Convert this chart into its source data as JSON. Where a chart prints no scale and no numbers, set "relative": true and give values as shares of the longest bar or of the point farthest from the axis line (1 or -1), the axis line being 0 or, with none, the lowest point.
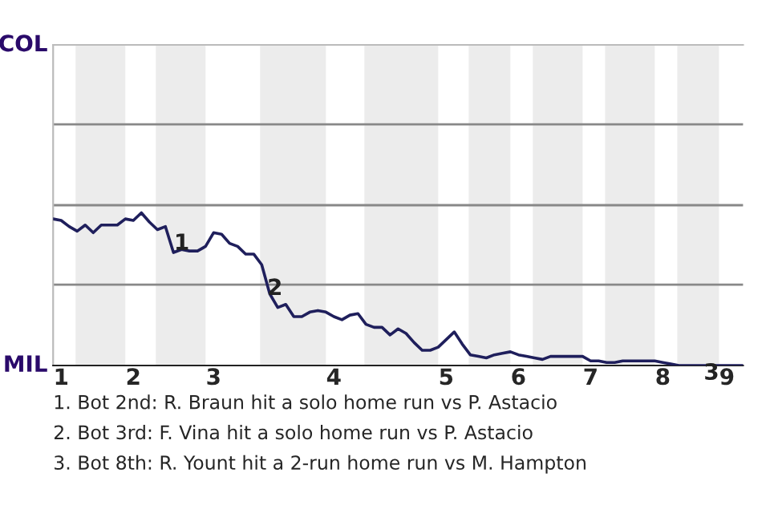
{
  "chart_data": {
    "type": "line",
    "relative": true,
    "categories": [
      null,
      "1",
      null,
      null,
      null,
      null,
      null,
      null,
      null,
      null,
      "2",
      null,
      null,
      null,
      null,
      null,
      null,
      null,
      null,
      null,
      "3",
      null,
      null,
      null,
      null,
      null,
      null,
      null,
      null,
      null,
      null,
      null,
      null,
      null,
      null,
      "4",
      null,
      null,
      null,
      null,
      null,
      null,
      null,
      null,
      null,
      null,
      null,
      null,
      null,
      "5",
      null,
      null,
      null,
      null,
      null,
      null,
      null,
      null,
      "6",
      null,
      null,
      null,
      null,
      null,
      null,
      null,
      null,
      "7",
      null,
      null,
      null,
      null,
      null,
      null,
      null,
      null,
      "8",
      null,
      null,
      null,
      null,
      null,
      null,
      null,
      "9",
      null,
      null
    ],
    "series": [
      {
        "color": "#1f1f5c",
        "values": [
          0.96,
          0.95,
          0.91,
          0.88,
          0.92,
          0.87,
          0.92,
          0.92,
          0.92,
          0.96,
          0.95,
          1,
          0.94,
          0.89,
          0.91,
          0.74,
          0.76,
          0.75,
          0.75,
          0.78,
          0.87,
          0.86,
          0.8,
          0.78,
          0.73,
          0.73,
          0.66,
          0.47,
          0.38,
          0.4,
          0.32,
          0.32,
          0.35,
          0.36,
          0.35,
          0.32,
          0.3,
          0.33,
          0.34,
          0.27,
          0.25,
          0.25,
          0.2,
          0.24,
          0.21,
          0.15,
          0.1,
          0.1,
          0.12,
          0.17,
          0.22,
          0.14,
          0.07,
          0.06,
          0.05,
          0.07,
          0.08,
          0.09,
          0.07,
          0.06,
          0.05,
          0.04,
          0.06,
          0.06,
          0.06,
          0.06,
          0.06,
          0.03,
          0.03,
          0.02,
          0.02,
          0.03,
          0.03,
          0.03,
          0.03,
          0.03,
          0.02,
          0.01,
          0,
          0,
          0,
          0,
          0,
          0,
          0,
          0,
          0
        ]
      }
    ],
    "ref_lines": [
      {
        "axis": "y",
        "value": 0.53,
        "color": "#888888"
      },
      {
        "axis": "y",
        "value": 1.05,
        "color": "#888888"
      },
      {
        "axis": "y",
        "value": 1.58,
        "color": "#888888"
      }
    ],
    "marker": "none",
    "line_style": "solid",
    "legend": false,
    "annotations": [
      "COL",
      "MIL",
      "1",
      "2",
      "3",
      "1. Bot 2nd: R. Braun hit a solo home run vs P. Astacio",
      "2. Bot 3rd: F. Vina hit a solo home run vs P. Astacio",
      "3. Bot 8th: R. Yount hit a 2-run home run vs M. Hampton"
    ]
  }
}
